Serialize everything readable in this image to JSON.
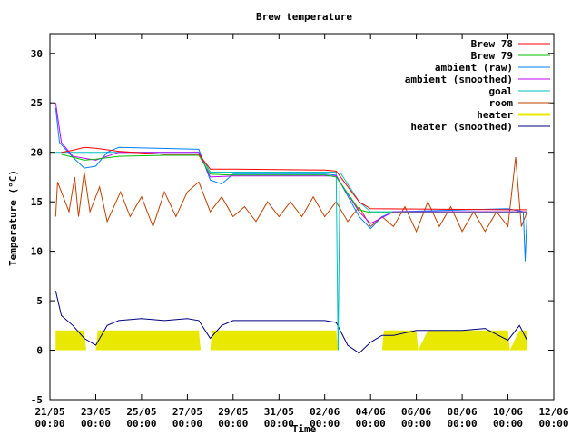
{
  "chart_data": {
    "type": "line",
    "title": "Brew temperature",
    "xlabel": "Time",
    "ylabel": "Temperature (°C)",
    "ylim": [
      -5,
      32
    ],
    "yticks": [
      -5,
      0,
      5,
      10,
      15,
      20,
      25,
      30
    ],
    "xlim": [
      "2013-05-21 00:00",
      "2013-06-12 00:00"
    ],
    "xticks": [
      {
        "date": "21/05",
        "time": "00:00"
      },
      {
        "date": "23/05",
        "time": "00:00"
      },
      {
        "date": "25/05",
        "time": "00:00"
      },
      {
        "date": "27/05",
        "time": "00:00"
      },
      {
        "date": "29/05",
        "time": "00:00"
      },
      {
        "date": "31/05",
        "time": "00:00"
      },
      {
        "date": "02/06",
        "time": "00:00"
      },
      {
        "date": "04/06",
        "time": "00:00"
      },
      {
        "date": "06/06",
        "time": "00:00"
      },
      {
        "date": "08/06",
        "time": "00:00"
      },
      {
        "date": "10/06",
        "time": "00:00"
      },
      {
        "date": "12/06",
        "time": "00:00"
      }
    ],
    "grid": false,
    "legend_position": "top-right",
    "series": [
      {
        "name": "Brew 78",
        "color": "#ff0000",
        "points": [
          [
            "2013-05-21 12:00",
            20.0
          ],
          [
            "2013-05-22 00:00",
            20.2
          ],
          [
            "2013-05-22 12:00",
            20.5
          ],
          [
            "2013-05-23 00:00",
            20.4
          ],
          [
            "2013-05-24 00:00",
            20.1
          ],
          [
            "2013-05-26 00:00",
            19.8
          ],
          [
            "2013-05-27 12:00",
            19.8
          ],
          [
            "2013-05-28 00:00",
            18.3
          ],
          [
            "2013-05-29 00:00",
            18.3
          ],
          [
            "2013-06-02 00:00",
            18.2
          ],
          [
            "2013-06-02 12:00",
            18.1
          ],
          [
            "2013-06-03 12:00",
            15.0
          ],
          [
            "2013-06-04 00:00",
            14.3
          ],
          [
            "2013-06-10 00:00",
            14.2
          ],
          [
            "2013-06-10 20:00",
            14.2
          ]
        ]
      },
      {
        "name": "Brew 79",
        "color": "#00c000",
        "points": [
          [
            "2013-05-21 12:00",
            19.8
          ],
          [
            "2013-05-22 00:00",
            19.5
          ],
          [
            "2013-05-22 12:00",
            19.2
          ],
          [
            "2013-05-23 00:00",
            19.3
          ],
          [
            "2013-05-24 00:00",
            19.6
          ],
          [
            "2013-05-26 00:00",
            19.7
          ],
          [
            "2013-05-27 12:00",
            19.7
          ],
          [
            "2013-05-28 00:00",
            17.8
          ],
          [
            "2013-05-29 00:00",
            17.7
          ],
          [
            "2013-06-02 00:00",
            17.7
          ],
          [
            "2013-06-02 12:00",
            17.5
          ],
          [
            "2013-06-03 12:00",
            14.2
          ],
          [
            "2013-06-04 00:00",
            13.9
          ],
          [
            "2013-06-10 00:00",
            13.9
          ],
          [
            "2013-06-10 20:00",
            13.9
          ]
        ]
      },
      {
        "name": "ambient (raw)",
        "color": "#0080ff",
        "points": [
          [
            "2013-05-21 06:00",
            24.5
          ],
          [
            "2013-05-21 10:00",
            21.0
          ],
          [
            "2013-05-22 00:00",
            19.5
          ],
          [
            "2013-05-22 12:00",
            18.4
          ],
          [
            "2013-05-23 00:00",
            18.6
          ],
          [
            "2013-05-23 12:00",
            20.0
          ],
          [
            "2013-05-24 00:00",
            20.5
          ],
          [
            "2013-05-27 12:00",
            20.3
          ],
          [
            "2013-05-28 00:00",
            17.2
          ],
          [
            "2013-05-28 12:00",
            16.8
          ],
          [
            "2013-05-29 00:00",
            17.8
          ],
          [
            "2013-06-02 00:00",
            17.8
          ],
          [
            "2013-06-02 12:00",
            17.7
          ],
          [
            "2013-06-03 12:00",
            13.5
          ],
          [
            "2013-06-04 00:00",
            12.3
          ],
          [
            "2013-06-04 12:00",
            13.5
          ],
          [
            "2013-06-05 00:00",
            14.0
          ],
          [
            "2013-06-10 00:00",
            14.3
          ],
          [
            "2013-06-10 16:00",
            14.0
          ],
          [
            "2013-06-10 18:00",
            9.0
          ],
          [
            "2013-06-10 20:00",
            14.0
          ]
        ]
      },
      {
        "name": "ambient (smoothed)",
        "color": "#c000ff",
        "points": [
          [
            "2013-05-21 06:00",
            25.0
          ],
          [
            "2013-05-21 12:00",
            21.0
          ],
          [
            "2013-05-22 00:00",
            19.6
          ],
          [
            "2013-05-23 00:00",
            19.2
          ],
          [
            "2013-05-24 00:00",
            20.0
          ],
          [
            "2013-05-27 12:00",
            20.0
          ],
          [
            "2013-05-28 00:00",
            17.5
          ],
          [
            "2013-05-29 00:00",
            17.6
          ],
          [
            "2013-06-02 12:00",
            17.6
          ],
          [
            "2013-06-03 12:00",
            14.0
          ],
          [
            "2013-06-04 00:00",
            12.8
          ],
          [
            "2013-06-05 00:00",
            14.0
          ],
          [
            "2013-06-10 20:00",
            14.0
          ]
        ]
      },
      {
        "name": "goal",
        "color": "#00c0c0",
        "points": [
          [
            "2013-05-21 06:00",
            20.0
          ],
          [
            "2013-05-27 12:00",
            20.0
          ],
          [
            "2013-05-28 00:00",
            18.0
          ],
          [
            "2013-06-02 12:00",
            18.0
          ],
          [
            "2013-06-02 14:00",
            0.0
          ],
          [
            "2013-06-02 16:00",
            18.0
          ],
          [
            "2013-06-03 12:00",
            15.0
          ],
          [
            "2013-06-04 00:00",
            14.0
          ],
          [
            "2013-06-10 20:00",
            14.0
          ]
        ]
      },
      {
        "name": "room",
        "color": "#c04000",
        "points": [
          [
            "2013-05-21 06:00",
            13.5
          ],
          [
            "2013-05-21 08:00",
            17.0
          ],
          [
            "2013-05-21 14:00",
            15.5
          ],
          [
            "2013-05-21 20:00",
            14.0
          ],
          [
            "2013-05-22 02:00",
            17.5
          ],
          [
            "2013-05-22 06:00",
            13.5
          ],
          [
            "2013-05-22 12:00",
            18.0
          ],
          [
            "2013-05-22 18:00",
            14.0
          ],
          [
            "2013-05-23 04:00",
            16.5
          ],
          [
            "2013-05-23 12:00",
            13.0
          ],
          [
            "2013-05-24 02:00",
            16.0
          ],
          [
            "2013-05-24 12:00",
            13.5
          ],
          [
            "2013-05-25 00:00",
            15.5
          ],
          [
            "2013-05-25 12:00",
            12.5
          ],
          [
            "2013-05-26 00:00",
            16.0
          ],
          [
            "2013-05-26 12:00",
            13.5
          ],
          [
            "2013-05-27 00:00",
            16.0
          ],
          [
            "2013-05-27 12:00",
            17.0
          ],
          [
            "2013-05-28 00:00",
            14.0
          ],
          [
            "2013-05-28 12:00",
            15.5
          ],
          [
            "2013-05-29 00:00",
            13.5
          ],
          [
            "2013-05-29 12:00",
            14.5
          ],
          [
            "2013-05-30 00:00",
            13.0
          ],
          [
            "2013-05-30 12:00",
            15.0
          ],
          [
            "2013-05-31 00:00",
            13.5
          ],
          [
            "2013-05-31 12:00",
            15.0
          ],
          [
            "2013-06-01 00:00",
            13.5
          ],
          [
            "2013-06-01 12:00",
            15.5
          ],
          [
            "2013-06-02 00:00",
            13.5
          ],
          [
            "2013-06-02 12:00",
            15.0
          ],
          [
            "2013-06-03 00:00",
            13.0
          ],
          [
            "2013-06-03 12:00",
            14.5
          ],
          [
            "2013-06-04 00:00",
            12.5
          ],
          [
            "2013-06-04 12:00",
            13.5
          ],
          [
            "2013-06-05 00:00",
            12.5
          ],
          [
            "2013-06-05 12:00",
            14.5
          ],
          [
            "2013-06-06 00:00",
            12.0
          ],
          [
            "2013-06-06 12:00",
            15.0
          ],
          [
            "2013-06-07 00:00",
            12.5
          ],
          [
            "2013-06-07 12:00",
            14.5
          ],
          [
            "2013-06-08 00:00",
            12.0
          ],
          [
            "2013-06-08 12:00",
            14.0
          ],
          [
            "2013-06-09 00:00",
            12.0
          ],
          [
            "2013-06-09 12:00",
            14.0
          ],
          [
            "2013-06-10 00:00",
            12.5
          ],
          [
            "2013-06-10 08:00",
            19.5
          ],
          [
            "2013-06-10 14:00",
            12.5
          ],
          [
            "2013-06-10 20:00",
            14.0
          ]
        ]
      },
      {
        "name": "heater",
        "color": "#e8e800",
        "points": [
          [
            "2013-05-21 06:00",
            2.0
          ],
          [
            "2013-05-22 12:00",
            2.0
          ],
          [
            "2013-05-22 14:00",
            0.0
          ],
          [
            "2013-05-23 00:00",
            0.0
          ],
          [
            "2013-05-23 02:00",
            2.0
          ],
          [
            "2013-05-27 12:00",
            2.0
          ],
          [
            "2013-05-27 14:00",
            0.0
          ],
          [
            "2013-05-28 00:00",
            0.0
          ],
          [
            "2013-05-28 02:00",
            2.0
          ],
          [
            "2013-06-02 12:00",
            2.0
          ],
          [
            "2013-06-02 14:00",
            0.0
          ],
          [
            "2013-06-04 12:00",
            0.0
          ],
          [
            "2013-06-04 14:00",
            2.0
          ],
          [
            "2013-06-06 00:00",
            2.0
          ],
          [
            "2013-06-06 02:00",
            0.0
          ],
          [
            "2013-06-06 12:00",
            2.0
          ],
          [
            "2013-06-10 00:00",
            2.0
          ],
          [
            "2013-06-10 02:00",
            0.0
          ],
          [
            "2013-06-10 12:00",
            2.0
          ],
          [
            "2013-06-10 20:00",
            2.0
          ]
        ]
      },
      {
        "name": "heater (smoothed)",
        "color": "#000080",
        "points": [
          [
            "2013-05-21 06:00",
            6.0
          ],
          [
            "2013-05-21 12:00",
            3.5
          ],
          [
            "2013-05-22 00:00",
            2.5
          ],
          [
            "2013-05-22 12:00",
            1.2
          ],
          [
            "2013-05-23 00:00",
            0.5
          ],
          [
            "2013-05-23 12:00",
            2.5
          ],
          [
            "2013-05-24 00:00",
            3.0
          ],
          [
            "2013-05-25 00:00",
            3.2
          ],
          [
            "2013-05-26 00:00",
            3.0
          ],
          [
            "2013-05-27 00:00",
            3.2
          ],
          [
            "2013-05-27 12:00",
            3.0
          ],
          [
            "2013-05-28 00:00",
            1.2
          ],
          [
            "2013-05-28 12:00",
            2.5
          ],
          [
            "2013-05-29 00:00",
            3.0
          ],
          [
            "2013-06-02 00:00",
            3.0
          ],
          [
            "2013-06-02 12:00",
            2.8
          ],
          [
            "2013-06-03 00:00",
            0.5
          ],
          [
            "2013-06-03 12:00",
            -0.3
          ],
          [
            "2013-06-04 00:00",
            0.8
          ],
          [
            "2013-06-04 12:00",
            1.5
          ],
          [
            "2013-06-05 00:00",
            1.5
          ],
          [
            "2013-06-06 00:00",
            2.0
          ],
          [
            "2013-06-07 00:00",
            2.0
          ],
          [
            "2013-06-08 00:00",
            2.0
          ],
          [
            "2013-06-09 00:00",
            2.2
          ],
          [
            "2013-06-10 00:00",
            1.0
          ],
          [
            "2013-06-10 12:00",
            2.5
          ],
          [
            "2013-06-10 20:00",
            1.0
          ]
        ]
      }
    ]
  }
}
